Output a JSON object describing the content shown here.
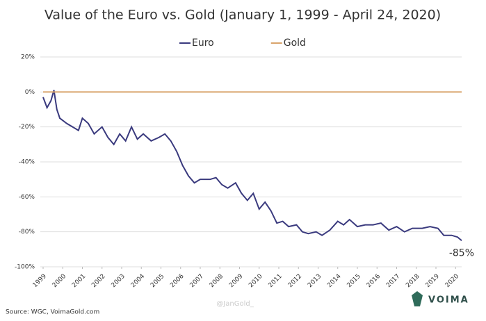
{
  "chart_data": {
    "type": "line",
    "title": "Value of the Euro vs. Gold (January 1, 1999 - April 24, 2020)",
    "series": [
      {
        "name": "Euro",
        "color": "#3a3a7e",
        "x": [
          1999.0,
          1999.2,
          1999.4,
          1999.55,
          1999.7,
          1999.85,
          2000.2,
          2000.5,
          2000.8,
          2001.0,
          2001.3,
          2001.6,
          2002.0,
          2002.3,
          2002.6,
          2002.9,
          2003.2,
          2003.5,
          2003.8,
          2004.1,
          2004.5,
          2004.9,
          2005.2,
          2005.5,
          2005.8,
          2006.1,
          2006.4,
          2006.7,
          2007.0,
          2007.5,
          2007.8,
          2008.1,
          2008.4,
          2008.8,
          2009.1,
          2009.4,
          2009.7,
          2010.0,
          2010.3,
          2010.6,
          2010.9,
          2011.2,
          2011.5,
          2011.9,
          2012.2,
          2012.5,
          2012.9,
          2013.2,
          2013.6,
          2014.0,
          2014.3,
          2014.6,
          2015.0,
          2015.4,
          2015.8,
          2016.2,
          2016.6,
          2017.0,
          2017.4,
          2017.8,
          2018.3,
          2018.7,
          2019.1,
          2019.4,
          2019.8,
          2020.1,
          2020.31
        ],
        "values": [
          -3,
          -9,
          -5,
          1,
          -10,
          -15,
          -18,
          -20,
          -22,
          -15,
          -18,
          -24,
          -20,
          -26,
          -30,
          -24,
          -28,
          -20,
          -27,
          -24,
          -28,
          -26,
          -24,
          -28,
          -34,
          -42,
          -48,
          -52,
          -50,
          -50,
          -49,
          -53,
          -55,
          -52,
          -58,
          -62,
          -58,
          -67,
          -63,
          -68,
          -75,
          -74,
          -77,
          -76,
          -80,
          -81,
          -80,
          -82,
          -79,
          -74,
          -76,
          -73,
          -77,
          -76,
          -76,
          -75,
          -79,
          -77,
          -80,
          -78,
          -78,
          -77,
          -78,
          -82,
          -82,
          -83,
          -85
        ]
      },
      {
        "name": "Gold",
        "color": "#d9a46c",
        "x": [
          1999.0,
          2020.31
        ],
        "values": [
          0,
          0
        ]
      }
    ],
    "xlim": [
      1999,
      2020.31
    ],
    "xticks": [
      1999,
      2000,
      2001,
      2002,
      2003,
      2004,
      2005,
      2006,
      2007,
      2008,
      2009,
      2010,
      2011,
      2012,
      2013,
      2014,
      2015,
      2016,
      2017,
      2018,
      2019,
      2020
    ],
    "ylim": [
      -100,
      20
    ],
    "yticks": [
      {
        "value": -100,
        "label": "-100%"
      },
      {
        "value": -80,
        "label": "-80%"
      },
      {
        "value": -60,
        "label": "-60%"
      },
      {
        "value": -40,
        "label": "-40%"
      },
      {
        "value": -20,
        "label": "-20%"
      },
      {
        "value": 0,
        "label": "0%"
      },
      {
        "value": 20,
        "label": "20%"
      }
    ],
    "grid": true,
    "annotation": "-85%",
    "source": "Source: WGC, VoimaGold.com",
    "watermark": "@JanGold_",
    "logo": "VOIMA"
  }
}
